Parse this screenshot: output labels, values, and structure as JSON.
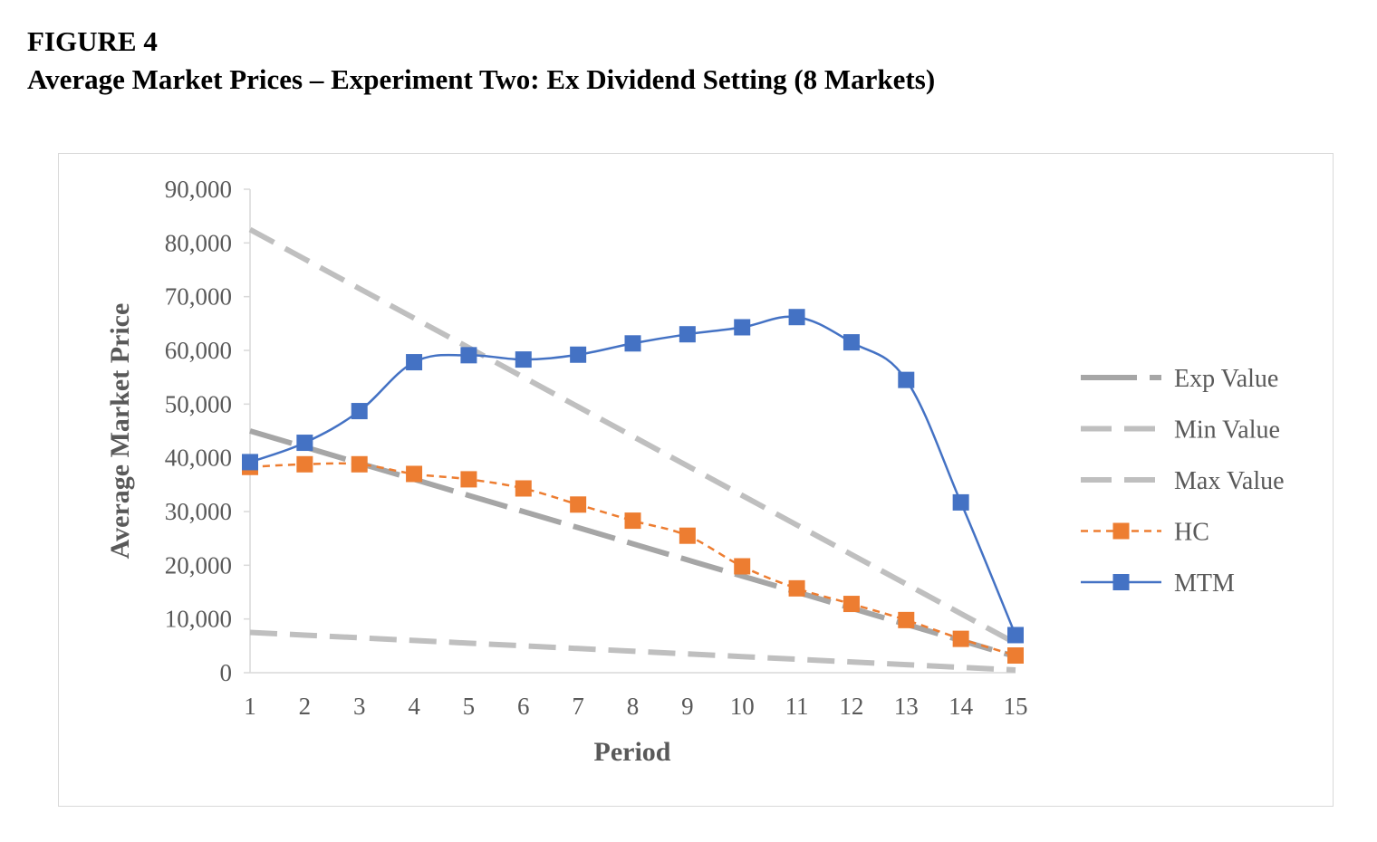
{
  "figure": {
    "label": "FIGURE 4",
    "title": "Average Market Prices – Experiment Two: Ex Dividend Setting (8 Markets)"
  },
  "chart_data": {
    "type": "line",
    "title": "Average Market Prices – Experiment Two: Ex Dividend Setting (8 Markets)",
    "xlabel": "Period",
    "ylabel": "Average Market Price",
    "ylim": [
      0,
      90000
    ],
    "yticks": [
      0,
      10000,
      20000,
      30000,
      40000,
      50000,
      60000,
      70000,
      80000,
      90000
    ],
    "ytick_labels": [
      "0",
      "10,000",
      "20,000",
      "30,000",
      "40,000",
      "50,000",
      "60,000",
      "70,000",
      "80,000",
      "90,000"
    ],
    "categories": [
      "1",
      "2",
      "3",
      "4",
      "5",
      "6",
      "7",
      "8",
      "9",
      "10",
      "11",
      "12",
      "13",
      "14",
      "15"
    ],
    "legend_position": "right",
    "series": [
      {
        "name": "Exp Value",
        "color": "#a6a6a6",
        "style": "long-dash",
        "marker": "none",
        "values": [
          45000,
          42000,
          39000,
          36000,
          33000,
          30000,
          27000,
          24000,
          21000,
          18000,
          15000,
          12000,
          9000,
          6000,
          3000
        ]
      },
      {
        "name": "Min Value",
        "color": "#bfbfbf",
        "style": "dash",
        "marker": "none",
        "values": [
          7500,
          7000,
          6500,
          6000,
          5500,
          5000,
          4500,
          4000,
          3500,
          3000,
          2500,
          2000,
          1500,
          1000,
          500
        ]
      },
      {
        "name": "Max Value",
        "color": "#bfbfbf",
        "style": "dash",
        "marker": "none",
        "values": [
          82500,
          77000,
          71500,
          66000,
          60500,
          55000,
          49500,
          44000,
          38500,
          33000,
          27500,
          22000,
          16500,
          11000,
          5500
        ]
      },
      {
        "name": "HC",
        "color": "#ed7d31",
        "style": "short-dash",
        "marker": "square",
        "values": [
          38300,
          38800,
          38800,
          37000,
          36000,
          34300,
          31300,
          28300,
          25500,
          19800,
          15700,
          12800,
          9800,
          6300,
          3200
        ]
      },
      {
        "name": "MTM",
        "color": "#4472c4",
        "style": "solid",
        "marker": "square",
        "values": [
          39200,
          42800,
          48700,
          57800,
          59100,
          58300,
          59200,
          61300,
          63000,
          64300,
          66200,
          61500,
          54500,
          31700,
          7000
        ]
      }
    ]
  }
}
